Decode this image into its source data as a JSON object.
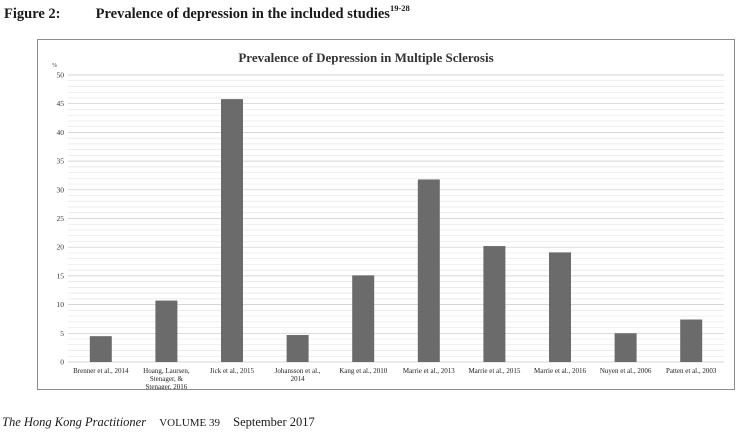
{
  "figure": {
    "label": "Figure 2:",
    "caption": "Prevalence of depression in the included studies",
    "refs": "19-28"
  },
  "footer": {
    "journal": "The Hong Kong Practitioner",
    "volume": "VOLUME 39",
    "date": "September  2017"
  },
  "chart_data": {
    "type": "bar",
    "title": "Prevalence of Depression in Multiple Sclerosis",
    "ylabel": "%",
    "xlabel": "",
    "ylim": [
      0,
      50
    ],
    "yticks": [
      0,
      5,
      10,
      15,
      20,
      25,
      30,
      35,
      40,
      45,
      50
    ],
    "grid": true,
    "legend": "none",
    "bar_color": "#6b6b6b",
    "categories": [
      "Brenner et al., 2014",
      "Hoang, Laursen, Stenager, & Stenager, 2016",
      "Jick et al., 2015",
      "Johansson et al., 2014",
      "Kang et al., 2010",
      "Marrie et al., 2013",
      "Marrie et al., 2015",
      "Marrie et al., 2016",
      "Nuyen et al., 2006",
      "Patten et al., 2003"
    ],
    "category_lines": [
      [
        "Brenner et al., 2014"
      ],
      [
        "Hoang, Laursen,",
        "Stenager, &",
        "Stenager, 2016"
      ],
      [
        "Jick et al., 2015"
      ],
      [
        "Johansson et al.,",
        "2014"
      ],
      [
        "Kang et al., 2010"
      ],
      [
        "Marrie et al., 2013"
      ],
      [
        "Marrie et al., 2015"
      ],
      [
        "Marrie et al., 2016"
      ],
      [
        "Nuyen et al., 2006"
      ],
      [
        "Patten et al., 2003"
      ]
    ],
    "values": [
      4.5,
      10.7,
      45.8,
      4.7,
      15.1,
      31.8,
      20.2,
      19.1,
      5.0,
      7.4
    ]
  }
}
